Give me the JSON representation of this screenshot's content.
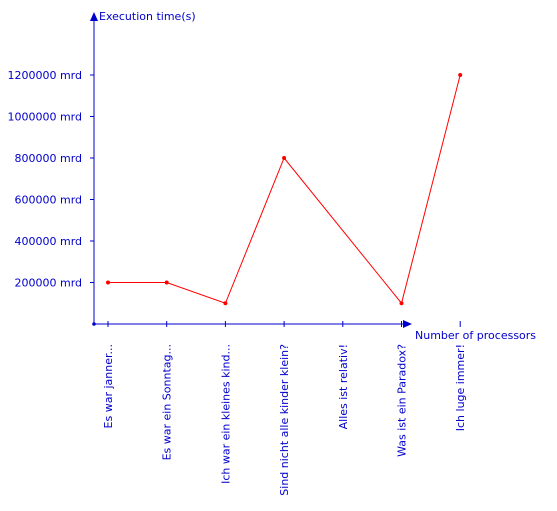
{
  "colors": {
    "axis": "#0000cc",
    "series": "#ff0000",
    "text": "#0000cc"
  },
  "chart_data": {
    "type": "line",
    "xlabel": "Number of processors",
    "ylabel": "Execution time(s)",
    "ylim": [
      0,
      1300000
    ],
    "yticks": [
      200000,
      400000,
      600000,
      800000,
      1000000,
      1200000
    ],
    "ytick_labels": [
      "200000 mrd",
      "400000 mrd",
      "600000 mrd",
      "800000 mrd",
      "1000000 mrd",
      "1200000 mrd"
    ],
    "categories": [
      "Es war janner...",
      "Es war ein Sonntag...",
      "Ich war ein kleines kind...",
      "Sind nicht alle kinder klein?",
      "Alles ist relativ!",
      "Was ist ein Paradox?",
      "Ich luge immer!"
    ],
    "series": [
      {
        "x": [
          0,
          1,
          2,
          3,
          5,
          6
        ],
        "values": [
          200000,
          200000,
          100000,
          800000,
          100000,
          1200000
        ]
      }
    ],
    "grid": false,
    "legend": false
  }
}
